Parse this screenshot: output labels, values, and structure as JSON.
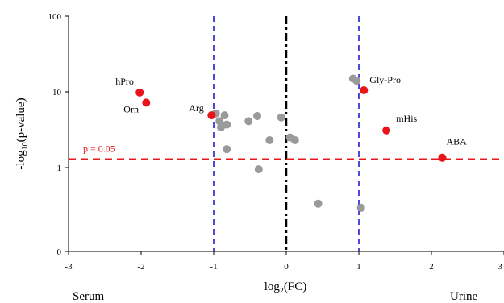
{
  "chart_data": {
    "type": "scatter",
    "title": "",
    "xlabel": "log2(FC)",
    "ylabel": "-log10(p-value)",
    "xlim": [
      -3,
      3
    ],
    "ylim_log": [
      0,
      100
    ],
    "y_scale": "log",
    "x_ticks": [
      "-3",
      "-2",
      "-1",
      "0",
      "1",
      "2",
      "3"
    ],
    "y_ticks": [
      "0",
      "1",
      "10",
      "100"
    ],
    "left_label": "Serum",
    "right_label": "Urine",
    "threshold": {
      "label": "p = 0.05",
      "y": 1.3,
      "color": "#e41a1c"
    },
    "vertical_lines": [
      {
        "x": -1,
        "color": "#1f1fcc",
        "style": "dashed"
      },
      {
        "x": 0,
        "color": "#000000",
        "style": "dashdot"
      },
      {
        "x": 1,
        "color": "#1f1fcc",
        "style": "dashed"
      }
    ],
    "significant": [
      {
        "x": -2.02,
        "y": 9.8,
        "label": "hPro"
      },
      {
        "x": -1.93,
        "y": 7.2,
        "label": "Orn"
      },
      {
        "x": -1.03,
        "y": 4.9,
        "label": "Arg"
      },
      {
        "x": 1.07,
        "y": 10.5,
        "label": "Gly-Pro"
      },
      {
        "x": 1.38,
        "y": 3.1,
        "label": "mHis"
      },
      {
        "x": 2.15,
        "y": 1.35,
        "label": "ABA"
      }
    ],
    "non_significant": [
      {
        "x": 0.92,
        "y": 15.0
      },
      {
        "x": 0.97,
        "y": 14.0
      },
      {
        "x": -0.97,
        "y": 5.2
      },
      {
        "x": -0.85,
        "y": 4.9
      },
      {
        "x": -0.92,
        "y": 4.1
      },
      {
        "x": -0.82,
        "y": 3.7
      },
      {
        "x": -0.9,
        "y": 3.4
      },
      {
        "x": -0.52,
        "y": 4.1
      },
      {
        "x": -0.4,
        "y": 4.8
      },
      {
        "x": -0.07,
        "y": 4.6
      },
      {
        "x": -0.23,
        "y": 2.3
      },
      {
        "x": 0.05,
        "y": 2.5
      },
      {
        "x": 0.12,
        "y": 2.3
      },
      {
        "x": -0.82,
        "y": 1.75
      },
      {
        "x": -0.38,
        "y": 0.98
      },
      {
        "x": 0.44,
        "y": 0.57
      },
      {
        "x": 1.03,
        "y": 0.52
      }
    ],
    "colors": {
      "significant": "#e8141a",
      "non_significant": "#9a9a9a"
    }
  }
}
